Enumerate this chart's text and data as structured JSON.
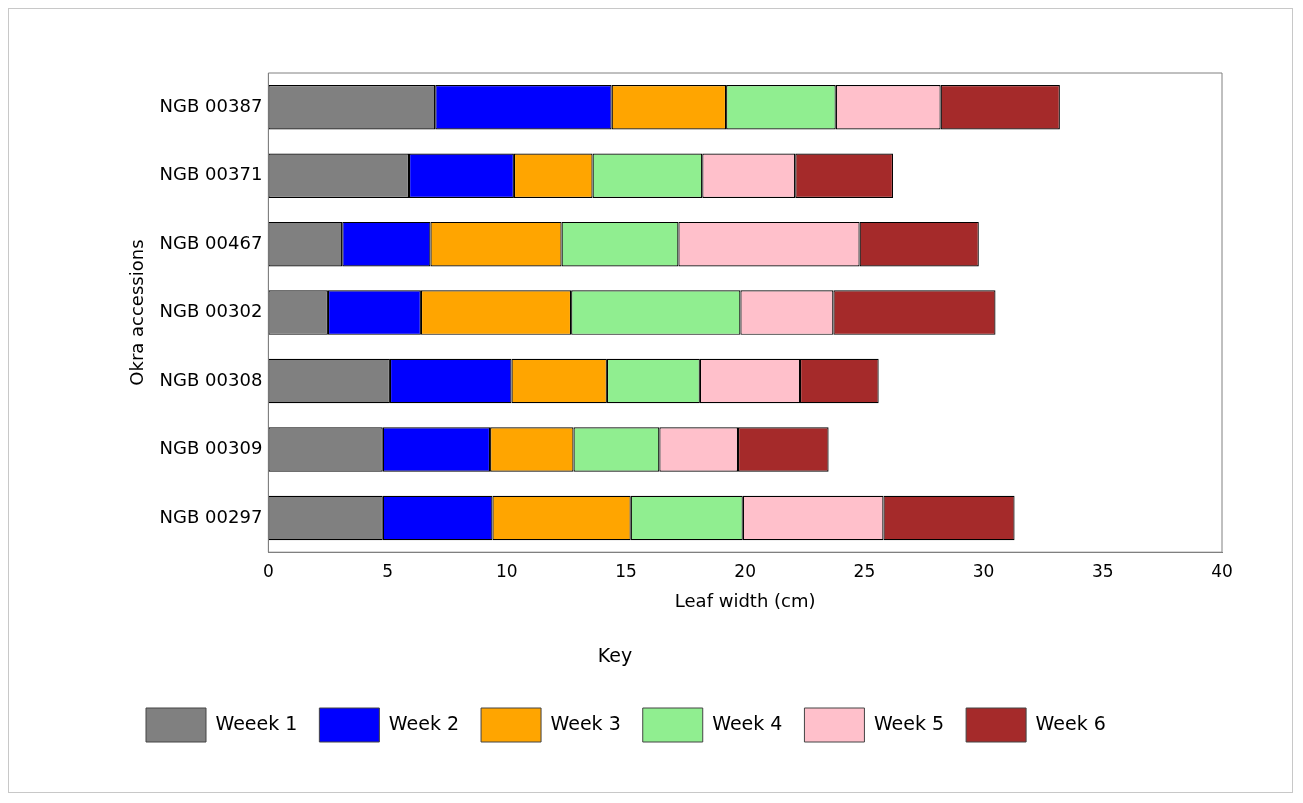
{
  "chart_data": {
    "type": "bar",
    "orientation": "horizontal",
    "stacked": true,
    "xlabel": "Leaf width (cm)",
    "ylabel": "Okra accessions",
    "legend_title": "Key",
    "legend": "bottom",
    "grid": false,
    "categories": [
      "NGB 00387",
      "NGB 00371",
      "NGB 00467",
      "NGB 00302",
      "NGB 00308",
      "NGB 00309",
      "NGB 00297"
    ],
    "xlim": [
      0,
      40
    ],
    "xticks": [
      0,
      5,
      10,
      15,
      20,
      25,
      30,
      35,
      40
    ],
    "series": [
      {
        "name": "Weeek 1",
        "color": "#808080",
        "values": [
          7.0,
          5.9,
          3.1,
          2.5,
          5.1,
          4.8,
          4.8
        ]
      },
      {
        "name": "Week 2",
        "color": "#0000ff",
        "values": [
          7.4,
          4.4,
          3.7,
          3.9,
          5.1,
          4.5,
          4.6
        ]
      },
      {
        "name": "Week 3",
        "color": "#ffa500",
        "values": [
          4.8,
          3.3,
          5.5,
          6.3,
          4.0,
          3.5,
          5.8
        ]
      },
      {
        "name": "Week 4",
        "color": "#90ee90",
        "values": [
          4.6,
          4.6,
          4.9,
          7.1,
          3.9,
          3.6,
          4.7
        ]
      },
      {
        "name": "Week 5",
        "color": "#ffc0cb",
        "values": [
          4.4,
          3.9,
          7.6,
          3.9,
          4.2,
          3.3,
          5.9
        ]
      },
      {
        "name": "Week 6",
        "color": "#a52a2a",
        "values": [
          5.0,
          4.1,
          5.0,
          6.8,
          3.3,
          3.8,
          5.5
        ]
      }
    ]
  }
}
